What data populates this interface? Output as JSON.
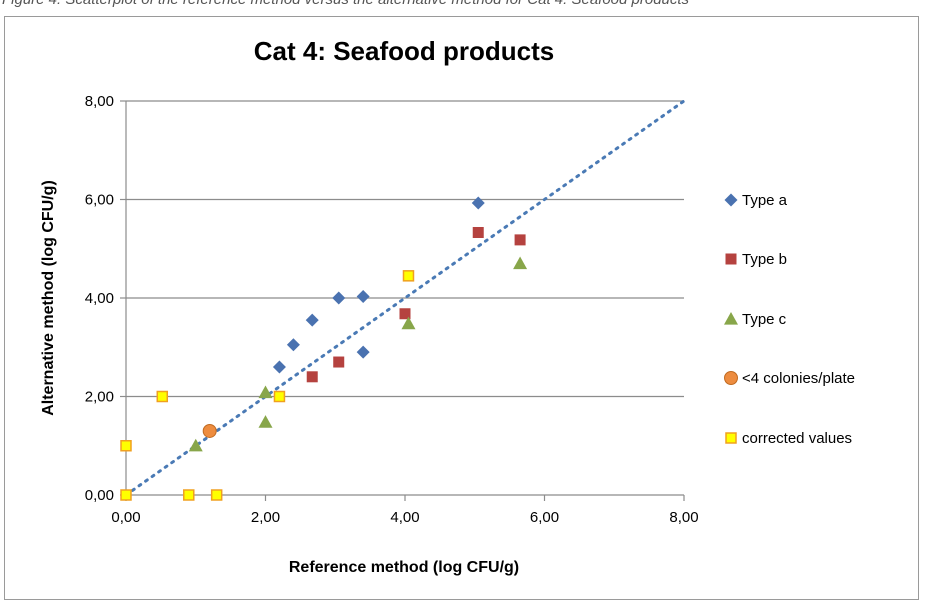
{
  "caption": "Figure 4: Scatterplot of the reference method versus the alternative method for Cat 4: Seafood products",
  "chart_data": {
    "type": "scatter",
    "title": "Cat 4: Seafood products",
    "xlabel": "Reference method (log CFU/g)",
    "ylabel": "Alternative method (log CFU/g)",
    "xlim": [
      0,
      8
    ],
    "ylim": [
      0,
      8
    ],
    "x_ticks": [
      "0,00",
      "2,00",
      "4,00",
      "6,00",
      "8,00"
    ],
    "y_ticks": [
      "0,00",
      "2,00",
      "4,00",
      "6,00",
      "8,00"
    ],
    "grid": "horizontal",
    "legend_position": "right",
    "reference_line": {
      "style": "dotted",
      "color": "#4a7ab5",
      "from": [
        0,
        0
      ],
      "to": [
        8,
        8
      ]
    },
    "series": [
      {
        "name": "Type a",
        "marker": "diamond",
        "color": "#4a72b0",
        "points": [
          [
            2.2,
            2.6
          ],
          [
            2.4,
            3.05
          ],
          [
            2.67,
            3.55
          ],
          [
            3.05,
            4.0
          ],
          [
            3.4,
            4.03
          ],
          [
            3.4,
            2.9
          ],
          [
            5.05,
            5.93
          ]
        ]
      },
      {
        "name": "Type b",
        "marker": "square",
        "color": "#b5423f",
        "points": [
          [
            2.67,
            2.4
          ],
          [
            3.05,
            2.7
          ],
          [
            4.0,
            3.68
          ],
          [
            5.05,
            5.33
          ],
          [
            5.65,
            5.18
          ]
        ]
      },
      {
        "name": "Type c",
        "marker": "triangle",
        "color": "#88a64a",
        "points": [
          [
            1.0,
            1.0
          ],
          [
            2.0,
            1.48
          ],
          [
            2.0,
            2.08
          ],
          [
            4.05,
            3.48
          ],
          [
            5.65,
            4.7
          ]
        ]
      },
      {
        "name": "<4 colonies/plate",
        "marker": "circle",
        "color": "#ed8c3f",
        "points": [
          [
            1.2,
            1.3
          ]
        ]
      },
      {
        "name": "corrected values",
        "marker": "square-outline",
        "color": "#ffff00",
        "stroke": "#f0a020",
        "points": [
          [
            0.0,
            1.0
          ],
          [
            0.0,
            0.0
          ],
          [
            0.52,
            2.0
          ],
          [
            0.9,
            0.0
          ],
          [
            1.3,
            0.0
          ],
          [
            2.2,
            2.0
          ],
          [
            4.05,
            4.45
          ]
        ]
      }
    ]
  }
}
